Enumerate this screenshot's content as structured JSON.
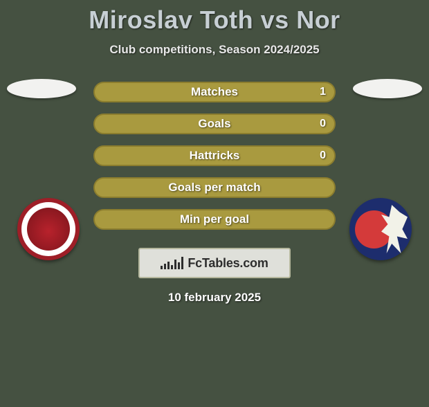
{
  "title": "Miroslav Toth vs Nor",
  "subtitle": "Club competitions, Season 2024/2025",
  "date": "10 february 2025",
  "logo_text": "FcTables.com",
  "colors": {
    "bar_fill": "#a99a3f",
    "bar_border": "#8b7d2e",
    "background": "#455141",
    "logo_box_bg": "#dfe0da",
    "logo_box_border": "#b6b89e"
  },
  "stats": [
    {
      "label": "Matches",
      "value": "1"
    },
    {
      "label": "Goals",
      "value": "0"
    },
    {
      "label": "Hattricks",
      "value": "0"
    },
    {
      "label": "Goals per match",
      "value": ""
    },
    {
      "label": "Min per goal",
      "value": ""
    }
  ],
  "logo_bar_heights": [
    5,
    8,
    11,
    6,
    14,
    10,
    18
  ]
}
